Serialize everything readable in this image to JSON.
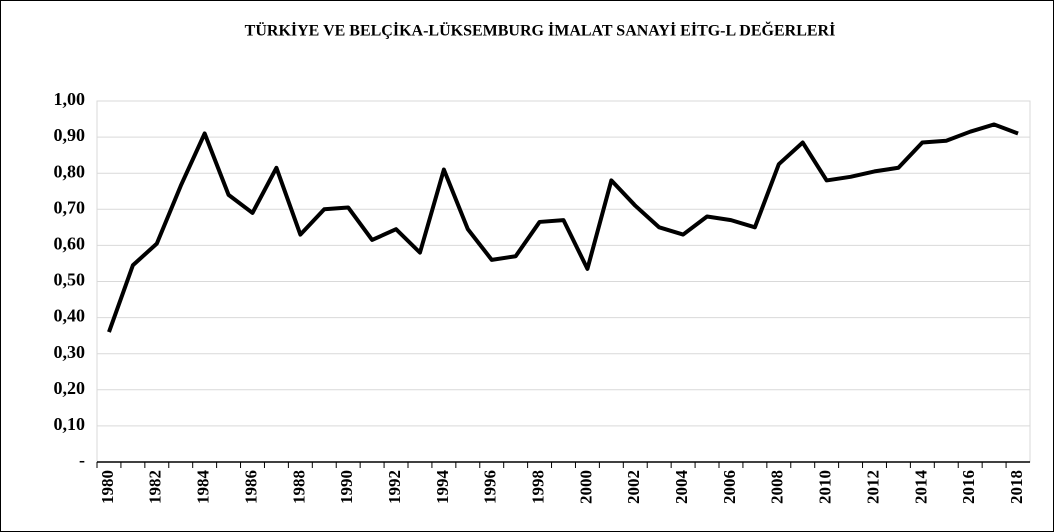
{
  "chart_data": {
    "type": "line",
    "title": "TÜRKİYE VE BELÇİKA-LÜKSEMBURG İMALAT SANAYİ EİTG-L DEĞERLERİ",
    "categories": [
      1980,
      null,
      1982,
      null,
      1984,
      null,
      1986,
      null,
      1988,
      null,
      1990,
      null,
      1992,
      null,
      1994,
      null,
      1996,
      null,
      1998,
      null,
      2000,
      null,
      2002,
      null,
      2004,
      null,
      2006,
      null,
      2008,
      null,
      2010,
      null,
      2012,
      null,
      2014,
      null,
      2016,
      null,
      2018
    ],
    "series": [
      {
        "color": "#000000",
        "values": [
          0.36,
          0.545,
          0.605,
          0.765,
          0.91,
          0.74,
          0.69,
          0.815,
          0.63,
          0.7,
          0.705,
          0.615,
          0.645,
          0.58,
          0.81,
          0.645,
          0.56,
          0.57,
          0.665,
          0.67,
          0.535,
          0.78,
          0.71,
          0.65,
          0.63,
          0.68,
          0.67,
          0.65,
          0.825,
          0.885,
          0.78,
          0.79,
          0.805,
          0.815,
          0.885,
          0.89,
          0.915,
          0.935,
          0.91
        ]
      }
    ],
    "ylim": [
      0,
      1
    ],
    "yticks": [
      {
        "value": 0,
        "label": "-"
      },
      {
        "value": 0.1,
        "label": "0,10"
      },
      {
        "value": 0.2,
        "label": "0,20"
      },
      {
        "value": 0.3,
        "label": "0,30"
      },
      {
        "value": 0.4,
        "label": "0,40"
      },
      {
        "value": 0.5,
        "label": "0,50"
      },
      {
        "value": 0.6,
        "label": "0,60"
      },
      {
        "value": 0.7,
        "label": "0,70"
      },
      {
        "value": 0.8,
        "label": "0,80"
      },
      {
        "value": 0.9,
        "label": "0,90"
      },
      {
        "value": 1,
        "label": "1,00"
      }
    ],
    "grid": true
  }
}
